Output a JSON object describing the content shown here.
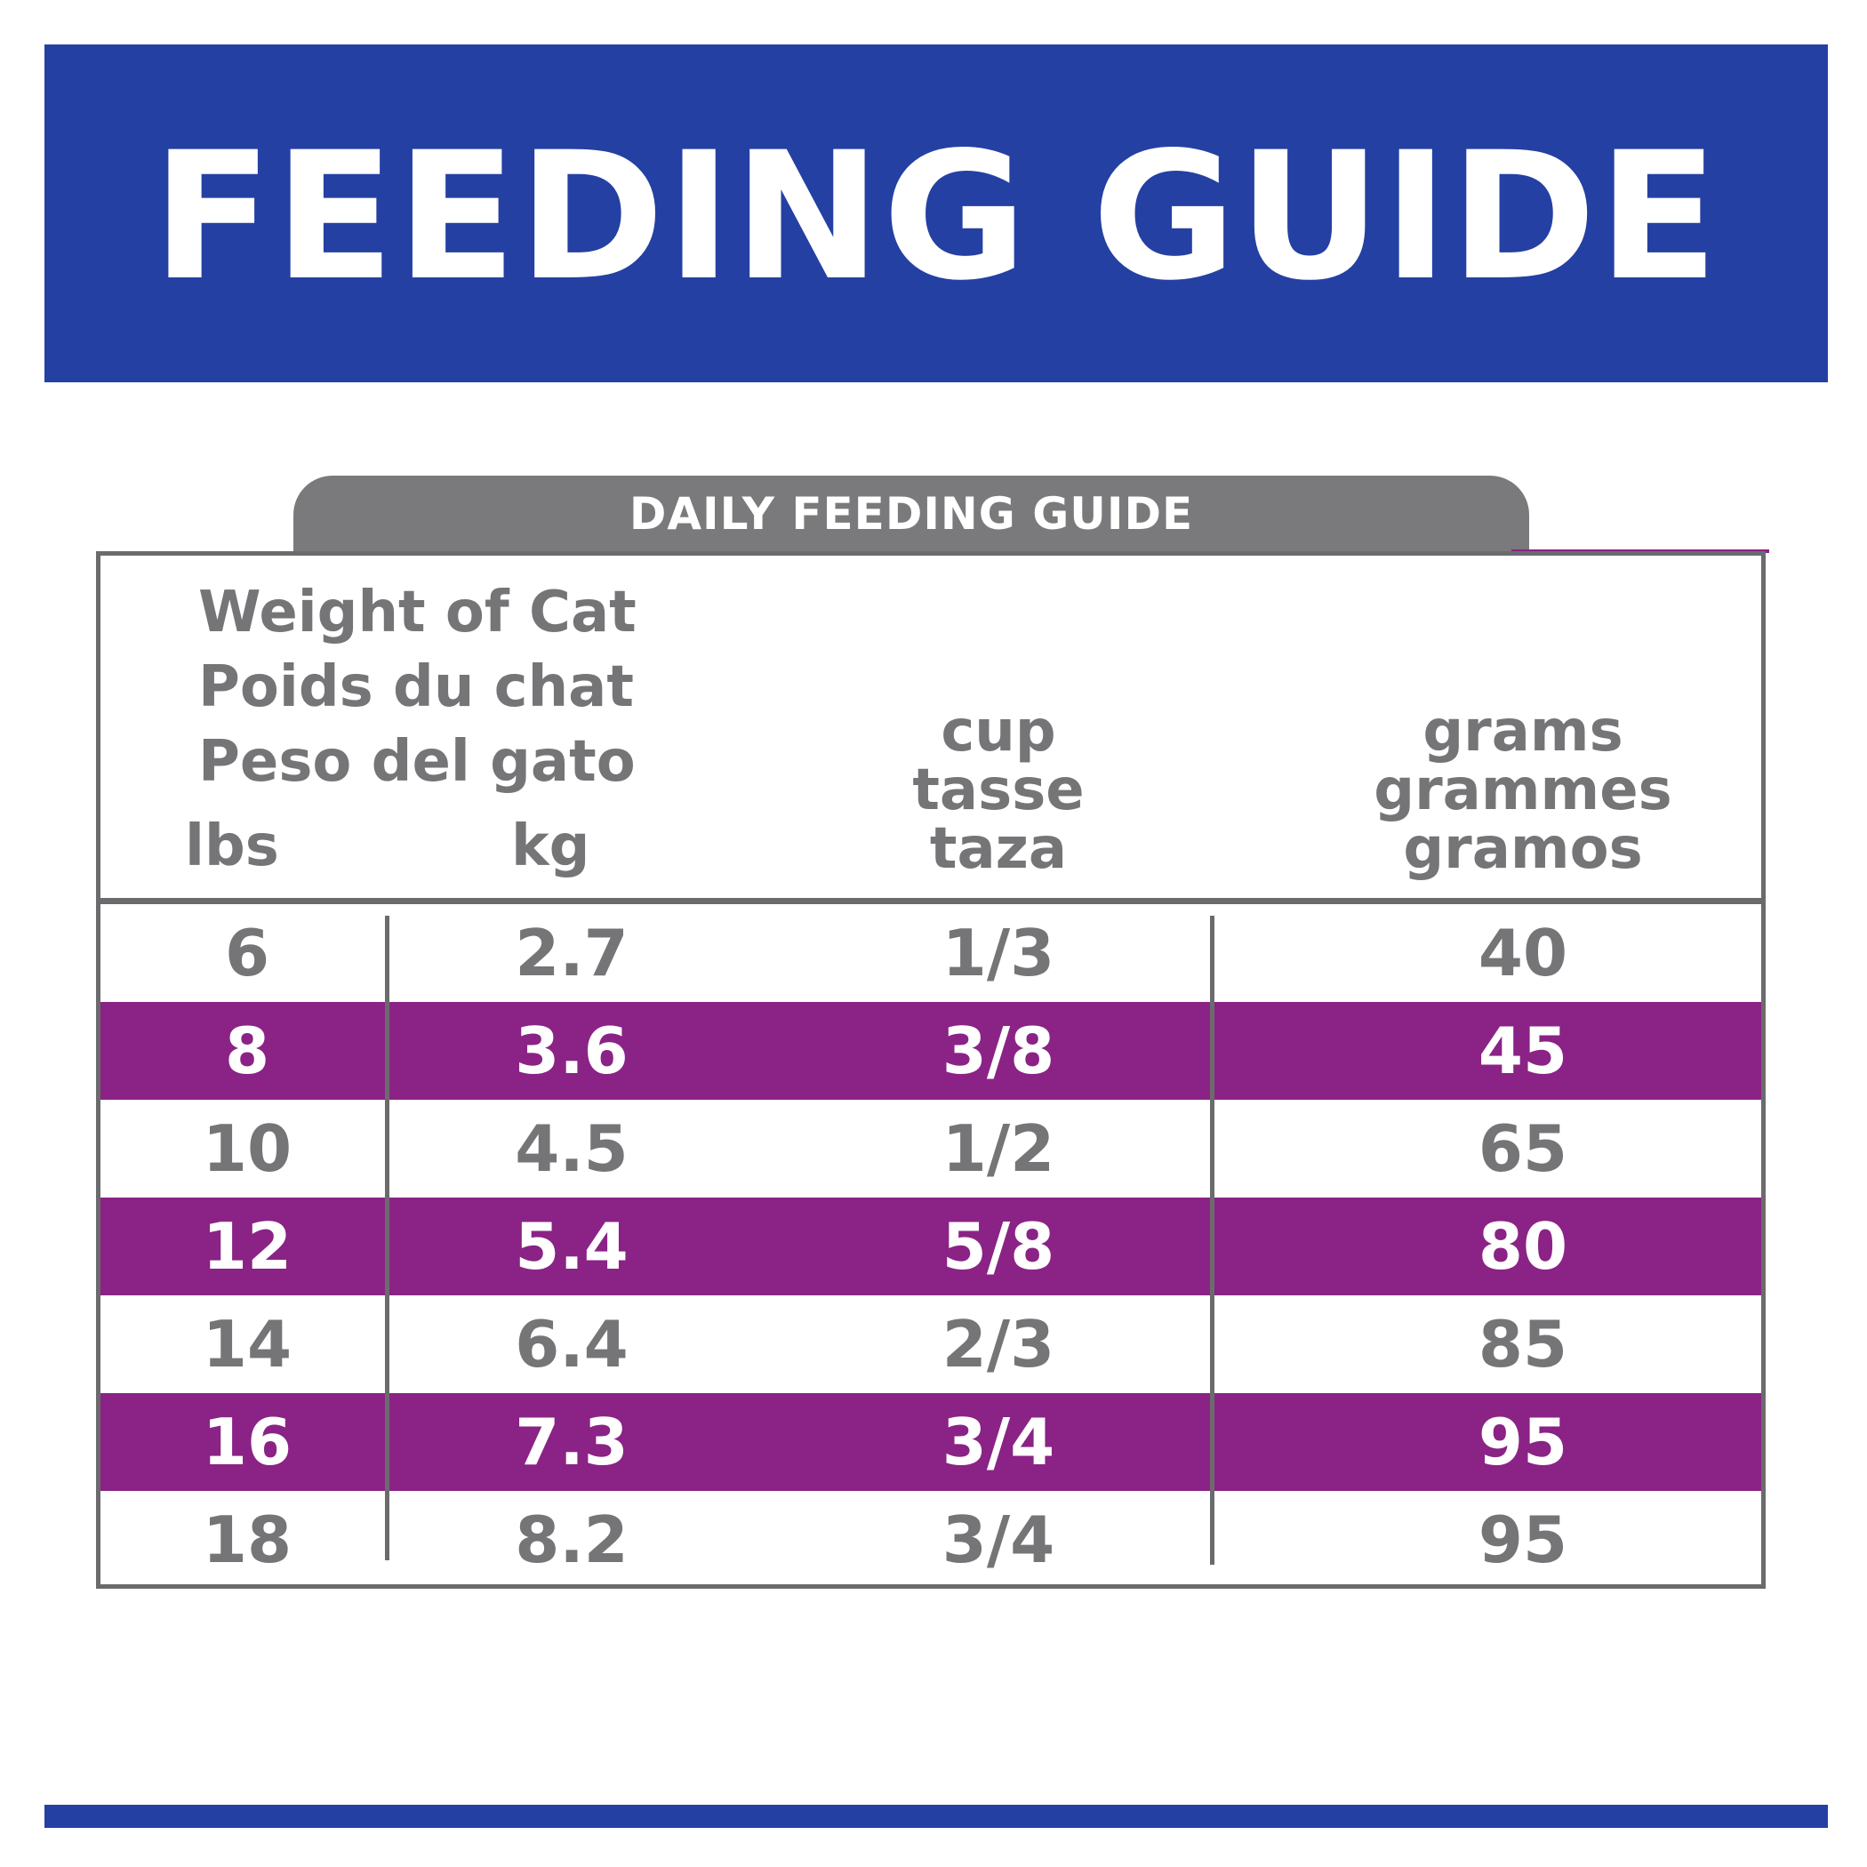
{
  "banner": {
    "title": "FEEDING GUIDE"
  },
  "tab": {
    "label": "DAILY FEEDING GUIDE"
  },
  "table": {
    "weight_header": [
      "Weight of Cat",
      "Poids du chat",
      "Peso del gato"
    ],
    "unit_lbs": "lbs",
    "unit_kg": "kg",
    "cup_header": [
      "cup",
      "tasse",
      "taza"
    ],
    "grams_header": [
      "grams",
      "grammes",
      "gramos"
    ],
    "rows": [
      {
        "lbs": "6",
        "kg": "2.7",
        "cup": "1/3",
        "grams": "40"
      },
      {
        "lbs": "8",
        "kg": "3.6",
        "cup": "3/8",
        "grams": "45"
      },
      {
        "lbs": "10",
        "kg": "4.5",
        "cup": "1/2",
        "grams": "65"
      },
      {
        "lbs": "12",
        "kg": "5.4",
        "cup": "5/8",
        "grams": "80"
      },
      {
        "lbs": "14",
        "kg": "6.4",
        "cup": "2/3",
        "grams": "85"
      },
      {
        "lbs": "16",
        "kg": "7.3",
        "cup": "3/4",
        "grams": "95"
      },
      {
        "lbs": "18",
        "kg": "8.2",
        "cup": "3/4",
        "grams": "95"
      }
    ]
  },
  "colors": {
    "banner_blue": "#2440a3",
    "row_purple": "#8a2385",
    "tab_gray": "#7a7a7c",
    "text_gray": "#757577"
  }
}
